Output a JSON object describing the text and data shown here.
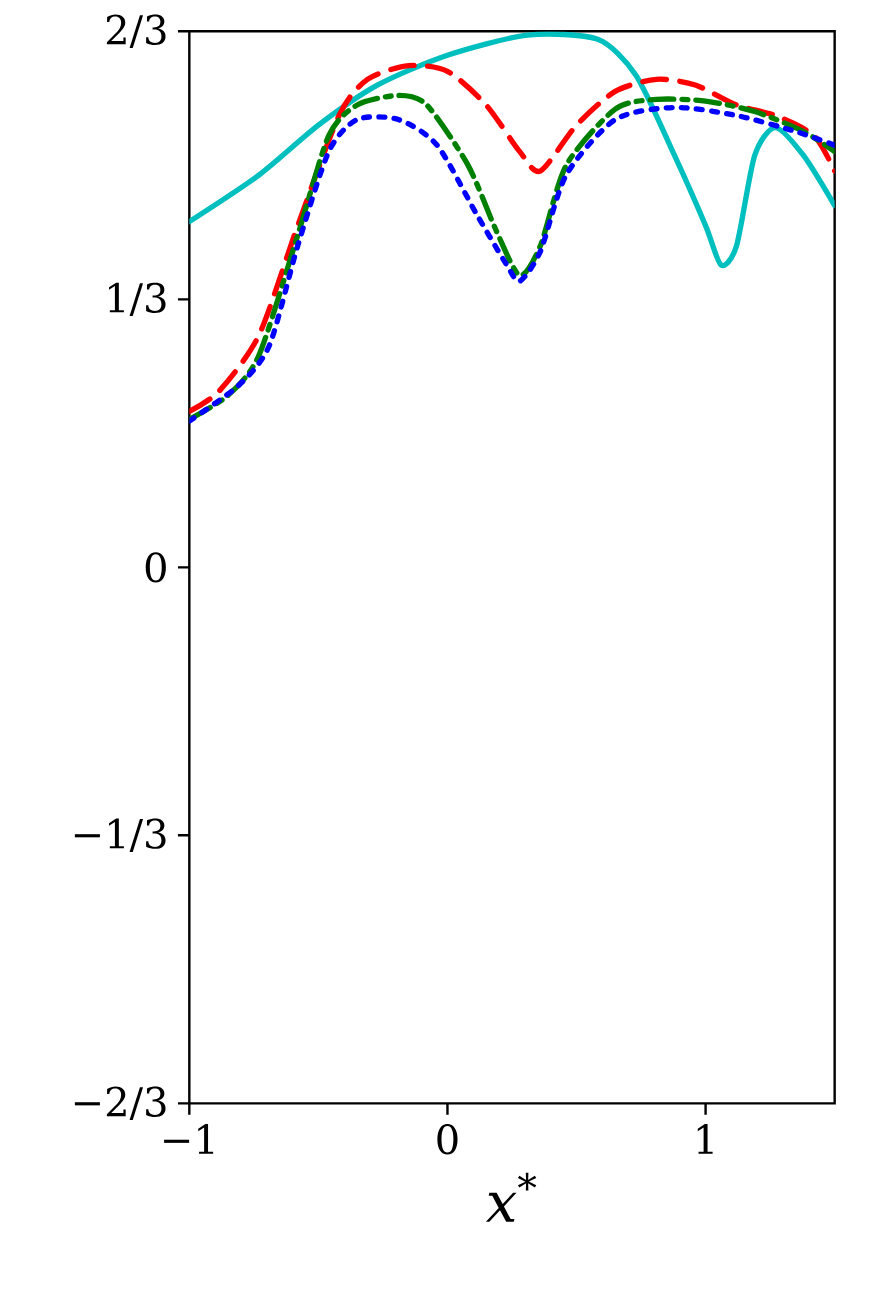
{
  "chart_data": {
    "type": "line",
    "xlabel": "*x*$^{*}$",
    "xlim": [
      -1,
      1.5
    ],
    "xticks": [
      {
        "value": -1,
        "label": "−1"
      },
      0,
      1
    ],
    "ylim": [
      -0.6667,
      0.6667
    ],
    "yticks": [
      {
        "value": -0.6667,
        "label": "−2/3"
      },
      {
        "value": -0.3333,
        "label": "−1/3"
      },
      {
        "value": 0,
        "label": "0"
      },
      {
        "value": 0.3333,
        "label": "1/3"
      },
      {
        "value": 0.6667,
        "label": "2/3"
      }
    ],
    "marker": "none",
    "series": [
      {
        "color": "#00bfbf",
        "line_style": "solid",
        "x": [
          -1,
          -0.73,
          -0.5,
          -0.27,
          0,
          0.31,
          0.58,
          0.73,
          0.88,
          1.0,
          1.06,
          1.12,
          1.19,
          1.27,
          1.38,
          1.5
        ],
        "values": [
          0.43,
          0.488,
          0.55,
          0.6,
          0.637,
          0.662,
          0.657,
          0.612,
          0.512,
          0.425,
          0.376,
          0.4,
          0.512,
          0.547,
          0.512,
          0.45
        ]
      },
      {
        "color": "#ff0000",
        "line_style": "dashed",
        "x": [
          -1,
          -0.885,
          -0.73,
          -0.58,
          -0.42,
          -0.31,
          -0.15,
          0,
          0.15,
          0.28,
          0.36,
          0.5,
          0.65,
          0.81,
          0.96,
          1.12,
          1.27,
          1.42,
          1.5
        ],
        "values": [
          0.194,
          0.219,
          0.289,
          0.425,
          0.562,
          0.607,
          0.624,
          0.617,
          0.575,
          0.517,
          0.493,
          0.55,
          0.592,
          0.607,
          0.6,
          0.575,
          0.562,
          0.537,
          0.493
        ]
      },
      {
        "color": "#008000",
        "line_style": "dashdot",
        "x": [
          -1,
          -0.85,
          -0.73,
          -0.58,
          -0.46,
          -0.35,
          -0.19,
          -0.08,
          0.08,
          0.19,
          0.28,
          0.36,
          0.46,
          0.65,
          0.81,
          1.0,
          1.19,
          1.38,
          1.5
        ],
        "values": [
          0.184,
          0.214,
          0.264,
          0.413,
          0.537,
          0.575,
          0.587,
          0.575,
          0.5,
          0.418,
          0.363,
          0.4,
          0.5,
          0.57,
          0.582,
          0.58,
          0.567,
          0.542,
          0.517
        ]
      },
      {
        "color": "#0000ff",
        "line_style": "dotted",
        "x": [
          -1,
          -0.81,
          -0.69,
          -0.58,
          -0.46,
          -0.35,
          -0.19,
          -0.04,
          0.115,
          0.23,
          0.28,
          0.36,
          0.46,
          0.65,
          0.88,
          1.12,
          1.35,
          1.5
        ],
        "values": [
          0.182,
          0.226,
          0.276,
          0.4,
          0.517,
          0.557,
          0.557,
          0.525,
          0.438,
          0.376,
          0.356,
          0.393,
          0.488,
          0.557,
          0.572,
          0.562,
          0.542,
          0.525
        ]
      }
    ]
  }
}
